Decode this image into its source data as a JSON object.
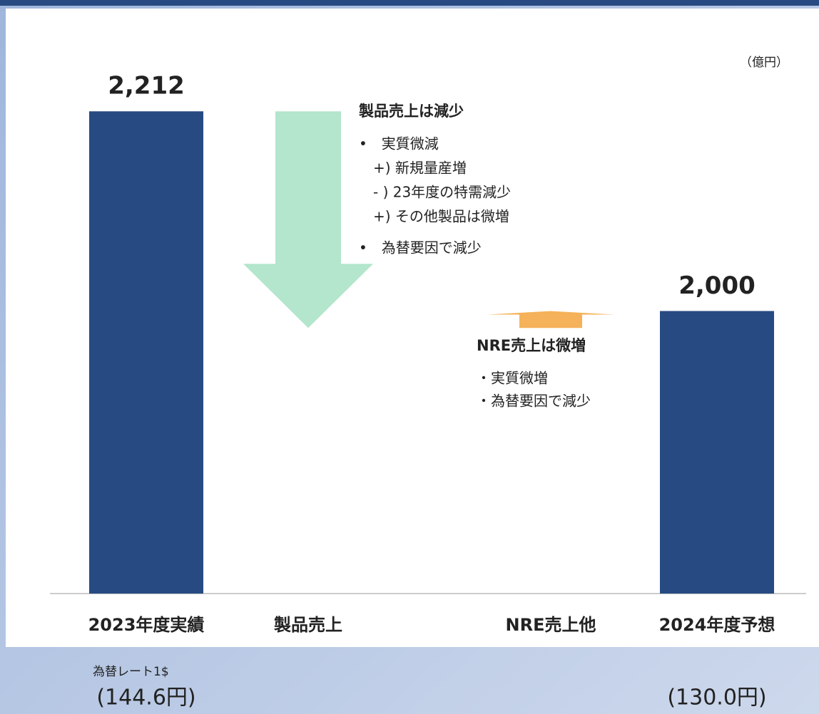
{
  "chart_data": {
    "type": "waterfall",
    "unit": "（億円）",
    "categories": [
      "2023年度実績",
      "製品売上",
      "NRE売上他",
      "2024年度予想"
    ],
    "values": [
      2212,
      -230,
      18,
      2000
    ],
    "value_labels": [
      "2,212",
      null,
      null,
      "2,000"
    ],
    "kinds": [
      "total",
      "change",
      "change",
      "total"
    ],
    "colors": [
      "#284a82",
      "#b3e6cc",
      "#f5b25a",
      "#284a82"
    ],
    "ylim": [
      1700,
      2250
    ],
    "annotations": [
      {
        "title": "製品売上は減少",
        "lines": [
          "•　実質微減",
          "　+) 新規量産増",
          "　- ) 23年度の特需減少",
          "　+) その他製品は微増",
          "•　為替要因で減少"
        ]
      },
      {
        "title": "NRE売上は微増",
        "lines": [
          "・実質微増",
          "・為替要因で減少"
        ]
      }
    ],
    "footer": {
      "note": "為替レート1$",
      "rates": [
        "(144.6円)",
        "(130.0円)"
      ]
    }
  }
}
